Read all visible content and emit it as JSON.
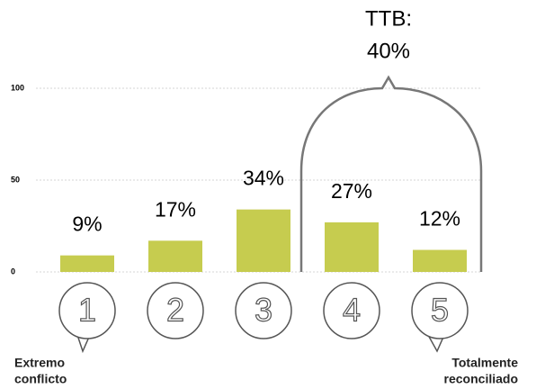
{
  "chart_data": {
    "type": "bar",
    "categories": [
      "1",
      "2",
      "3",
      "4",
      "5"
    ],
    "values": [
      9,
      17,
      34,
      27,
      12
    ],
    "value_labels": [
      "9%",
      "17%",
      "34%",
      "27%",
      "12%"
    ],
    "color": "#c6cc4f",
    "ylim": [
      0,
      100
    ],
    "yticks": [
      0,
      50,
      100
    ],
    "grid": true,
    "annotation": {
      "label": "TTB:",
      "value": 40,
      "value_label": "40%"
    },
    "low_label": [
      "Extremo",
      "conflicto"
    ],
    "high_label": [
      "Totalmente",
      "reconciliado"
    ]
  }
}
